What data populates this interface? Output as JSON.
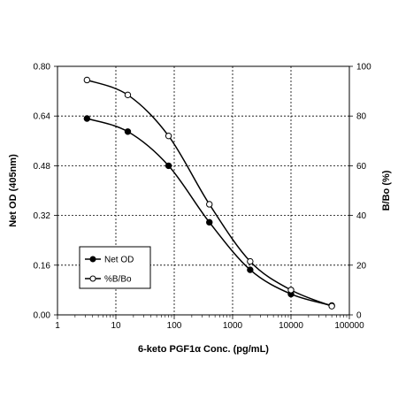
{
  "chart_data": {
    "type": "line",
    "xlabel": "6-keto PGF1α Conc. (pg/mL)",
    "ylabel": "Net OD (405nm)",
    "y2label": "B/Bo (%)",
    "xscale": "log",
    "xlim": [
      1,
      100000
    ],
    "ylim": [
      0,
      0.8
    ],
    "y2lim": [
      0,
      100
    ],
    "x_ticks": [
      "1",
      "10",
      "100",
      "1000",
      "10000",
      "100000"
    ],
    "y_ticks": [
      "0.00",
      "0.16",
      "0.32",
      "0.48",
      "0.64",
      "0.80"
    ],
    "y2_ticks": [
      "0",
      "20",
      "40",
      "60",
      "80",
      "100"
    ],
    "grid": "vertical dashed at decades, horizontal dashed at y ticks",
    "legend_position": "bottom-left",
    "series": [
      {
        "name": "Net OD",
        "axis": "left",
        "marker": "filled-circle",
        "x": [
          3.2,
          16,
          80,
          400,
          2000,
          10000,
          50000
        ],
        "values": [
          0.632,
          0.59,
          0.48,
          0.298,
          0.145,
          0.067,
          0.03
        ]
      },
      {
        "name": "%B/Bo",
        "axis": "right",
        "marker": "open-circle",
        "x": [
          3.2,
          16,
          80,
          400,
          2000,
          10000,
          50000
        ],
        "values": [
          94.5,
          88.5,
          72,
          44.5,
          21.5,
          10,
          3.5
        ]
      }
    ]
  }
}
